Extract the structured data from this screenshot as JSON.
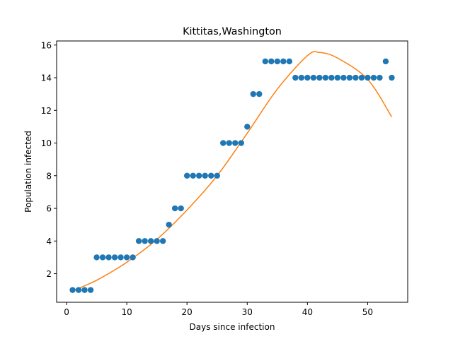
{
  "chart_data": {
    "type": "scatter",
    "title": "Kittitas,Washington",
    "xlabel": "Days since infection",
    "ylabel": "Population infected",
    "xlim": [
      -1.65,
      56.65
    ],
    "ylim": [
      0.25,
      16.25
    ],
    "xticks": [
      0,
      10,
      20,
      30,
      40,
      50
    ],
    "yticks": [
      2,
      4,
      6,
      8,
      10,
      12,
      14,
      16
    ],
    "grid": false,
    "colors": {
      "points": "#1f77b4",
      "fit": "#ff7f0e"
    },
    "series": [
      {
        "kind": "points",
        "x": [
          1,
          2,
          3,
          4,
          5,
          6,
          7,
          8,
          9,
          10,
          11,
          12,
          13,
          14,
          15,
          16,
          17,
          18,
          19,
          20,
          21,
          22,
          23,
          24,
          25,
          26,
          27,
          28,
          29,
          30,
          31,
          32,
          33,
          34,
          35,
          36,
          37,
          38,
          39,
          40,
          41,
          42,
          43,
          44,
          45,
          46,
          47,
          48,
          49,
          50,
          51,
          52,
          53,
          54
        ],
        "y": [
          1,
          1,
          1,
          1,
          3,
          3,
          3,
          3,
          3,
          3,
          3,
          4,
          4,
          4,
          4,
          4,
          5,
          6,
          6,
          8,
          8,
          8,
          8,
          8,
          8,
          10,
          10,
          10,
          10,
          11,
          13,
          13,
          15,
          15,
          15,
          15,
          15,
          14,
          14,
          14,
          14,
          14,
          14,
          14,
          14,
          14,
          14,
          14,
          14,
          14,
          14,
          14,
          15,
          14
        ]
      },
      {
        "kind": "fit",
        "x": [
          1,
          5,
          10,
          15,
          20,
          25,
          30,
          35,
          40,
          42,
          45,
          50,
          54
        ],
        "y": [
          0.95,
          1.6,
          2.7,
          4.1,
          5.9,
          8.0,
          10.6,
          13.3,
          15.35,
          15.55,
          15.2,
          13.9,
          11.6
        ]
      }
    ]
  }
}
